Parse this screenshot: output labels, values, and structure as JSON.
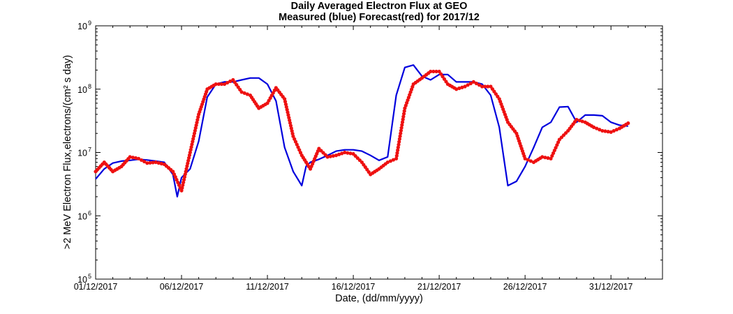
{
  "chart_data": {
    "type": "line",
    "title": "Daily Averaged Electron Flux at GEO",
    "subtitle": "Measured (blue) Forecast(red) for 2017/12",
    "xlabel": "Date, (dd/mm/yyyy)",
    "ylabel": ">2 MeV Electron Flux,electrons/(cm² s day)",
    "y_scale": "log",
    "xlim": [
      "2017-12-01",
      "2018-01-03"
    ],
    "ylim": [
      100000,
      1000000000
    ],
    "grid": false,
    "legend": "none",
    "x_tick_labels": [
      "01/12/2017",
      "06/12/2017",
      "11/12/2017",
      "16/12/2017",
      "21/12/2017",
      "26/12/2017",
      "31/12/2017"
    ],
    "y_tick_labels": [
      {
        "base": "10",
        "exp": "5"
      },
      {
        "base": "10",
        "exp": "6"
      },
      {
        "base": "10",
        "exp": "7"
      },
      {
        "base": "10",
        "exp": "8"
      },
      {
        "base": "10",
        "exp": "9"
      }
    ],
    "series": [
      {
        "color": "#0000dd",
        "style": "line",
        "x": [
          "2017-12-01T00:00",
          "2017-12-01T12:00",
          "2017-12-02T00:00",
          "2017-12-02T12:00",
          "2017-12-03T00:00",
          "2017-12-03T12:00",
          "2017-12-04T00:00",
          "2017-12-04T12:00",
          "2017-12-05T00:00",
          "2017-12-05T12:00",
          "2017-12-05T18:00",
          "2017-12-06T00:00",
          "2017-12-06T12:00",
          "2017-12-07T00:00",
          "2017-12-07T12:00",
          "2017-12-08T00:00",
          "2017-12-08T12:00",
          "2017-12-09T00:00",
          "2017-12-09T12:00",
          "2017-12-10T00:00",
          "2017-12-10T12:00",
          "2017-12-11T00:00",
          "2017-12-11T12:00",
          "2017-12-12T00:00",
          "2017-12-12T12:00",
          "2017-12-13T00:00",
          "2017-12-13T06:00",
          "2017-12-13T12:00",
          "2017-12-14T00:00",
          "2017-12-14T12:00",
          "2017-12-15T00:00",
          "2017-12-15T12:00",
          "2017-12-16T00:00",
          "2017-12-16T12:00",
          "2017-12-17T00:00",
          "2017-12-17T12:00",
          "2017-12-18T00:00",
          "2017-12-18T12:00",
          "2017-12-19T00:00",
          "2017-12-19T12:00",
          "2017-12-20T00:00",
          "2017-12-20T12:00",
          "2017-12-21T00:00",
          "2017-12-21T12:00",
          "2017-12-22T00:00",
          "2017-12-22T12:00",
          "2017-12-23T00:00",
          "2017-12-23T12:00",
          "2017-12-24T00:00",
          "2017-12-24T12:00",
          "2017-12-25T00:00",
          "2017-12-25T12:00",
          "2017-12-26T00:00",
          "2017-12-26T12:00",
          "2017-12-27T00:00",
          "2017-12-27T12:00",
          "2017-12-28T00:00",
          "2017-12-28T12:00",
          "2017-12-29T00:00",
          "2017-12-29T12:00",
          "2017-12-30T00:00",
          "2017-12-30T12:00",
          "2017-12-31T00:00",
          "2017-12-31T12:00",
          "2018-01-01T00:00"
        ],
        "y": [
          3800000.0,
          5500000.0,
          6800000.0,
          7300000.0,
          7500000.0,
          7800000.0,
          7600000.0,
          7300000.0,
          7000000.0,
          4500000.0,
          2000000.0,
          4000000.0,
          5500000.0,
          15000000.0,
          75000000.0,
          120000000.0,
          130000000.0,
          130000000.0,
          140000000.0,
          150000000.0,
          150000000.0,
          120000000.0,
          65000000.0,
          12000000.0,
          5000000.0,
          3000000.0,
          6000000.0,
          7000000.0,
          7800000.0,
          9000000.0,
          10500000.0,
          11000000.0,
          11000000.0,
          10500000.0,
          9000000.0,
          7500000.0,
          8500000.0,
          80000000.0,
          220000000.0,
          240000000.0,
          160000000.0,
          140000000.0,
          170000000.0,
          170000000.0,
          130000000.0,
          130000000.0,
          130000000.0,
          120000000.0,
          80000000.0,
          25000000.0,
          3000000.0,
          3500000.0,
          6000000.0,
          12000000.0,
          25000000.0,
          30000000.0,
          52000000.0,
          53000000.0,
          30000000.0,
          39000000.0,
          39000000.0,
          38000000.0,
          30000000.0,
          27000000.0,
          26000000.0
        ]
      },
      {
        "color": "#ee1111",
        "style": "markers",
        "x": [
          "2017-12-01T00:00",
          "2017-12-01T12:00",
          "2017-12-02T00:00",
          "2017-12-02T12:00",
          "2017-12-03T00:00",
          "2017-12-03T12:00",
          "2017-12-04T00:00",
          "2017-12-04T12:00",
          "2017-12-05T00:00",
          "2017-12-05T12:00",
          "2017-12-06T00:00",
          "2017-12-06T12:00",
          "2017-12-07T00:00",
          "2017-12-07T12:00",
          "2017-12-08T00:00",
          "2017-12-08T12:00",
          "2017-12-09T00:00",
          "2017-12-09T12:00",
          "2017-12-10T00:00",
          "2017-12-10T12:00",
          "2017-12-11T00:00",
          "2017-12-11T12:00",
          "2017-12-12T00:00",
          "2017-12-12T12:00",
          "2017-12-13T00:00",
          "2017-12-13T12:00",
          "2017-12-14T00:00",
          "2017-12-14T12:00",
          "2017-12-15T00:00",
          "2017-12-15T12:00",
          "2017-12-16T00:00",
          "2017-12-16T12:00",
          "2017-12-17T00:00",
          "2017-12-17T12:00",
          "2017-12-18T00:00",
          "2017-12-18T12:00",
          "2017-12-19T00:00",
          "2017-12-19T12:00",
          "2017-12-20T00:00",
          "2017-12-20T12:00",
          "2017-12-21T00:00",
          "2017-12-21T12:00",
          "2017-12-22T00:00",
          "2017-12-22T12:00",
          "2017-12-23T00:00",
          "2017-12-23T12:00",
          "2017-12-24T00:00",
          "2017-12-24T12:00",
          "2017-12-25T00:00",
          "2017-12-25T12:00",
          "2017-12-26T00:00",
          "2017-12-26T12:00",
          "2017-12-27T00:00",
          "2017-12-27T12:00",
          "2017-12-28T00:00",
          "2017-12-28T12:00",
          "2017-12-29T00:00",
          "2017-12-29T12:00",
          "2017-12-30T00:00",
          "2017-12-30T12:00",
          "2017-12-31T00:00",
          "2017-12-31T12:00",
          "2018-01-01T00:00"
        ],
        "y": [
          5000000.0,
          7000000.0,
          5000000.0,
          6000000.0,
          8500000.0,
          8000000.0,
          6800000.0,
          7000000.0,
          6500000.0,
          5000000.0,
          2500000.0,
          10000000.0,
          40000000.0,
          100000000.0,
          120000000.0,
          120000000.0,
          140000000.0,
          90000000.0,
          80000000.0,
          50000000.0,
          60000000.0,
          105000000.0,
          70000000.0,
          18000000.0,
          9000000.0,
          5500000.0,
          11500000.0,
          8500000.0,
          9000000.0,
          10000000.0,
          9500000.0,
          7000000.0,
          4500000.0,
          5500000.0,
          7000000.0,
          8000000.0,
          50000000.0,
          120000000.0,
          150000000.0,
          190000000.0,
          190000000.0,
          120000000.0,
          100000000.0,
          110000000.0,
          130000000.0,
          110000000.0,
          110000000.0,
          70000000.0,
          30000000.0,
          20000000.0,
          8000000.0,
          7000000.0,
          8500000.0,
          8000000.0,
          16000000.0,
          22000000.0,
          33000000.0,
          30000000.0,
          25000000.0,
          22000000.0,
          21000000.0,
          24000000.0,
          29000000.0
        ]
      }
    ]
  }
}
